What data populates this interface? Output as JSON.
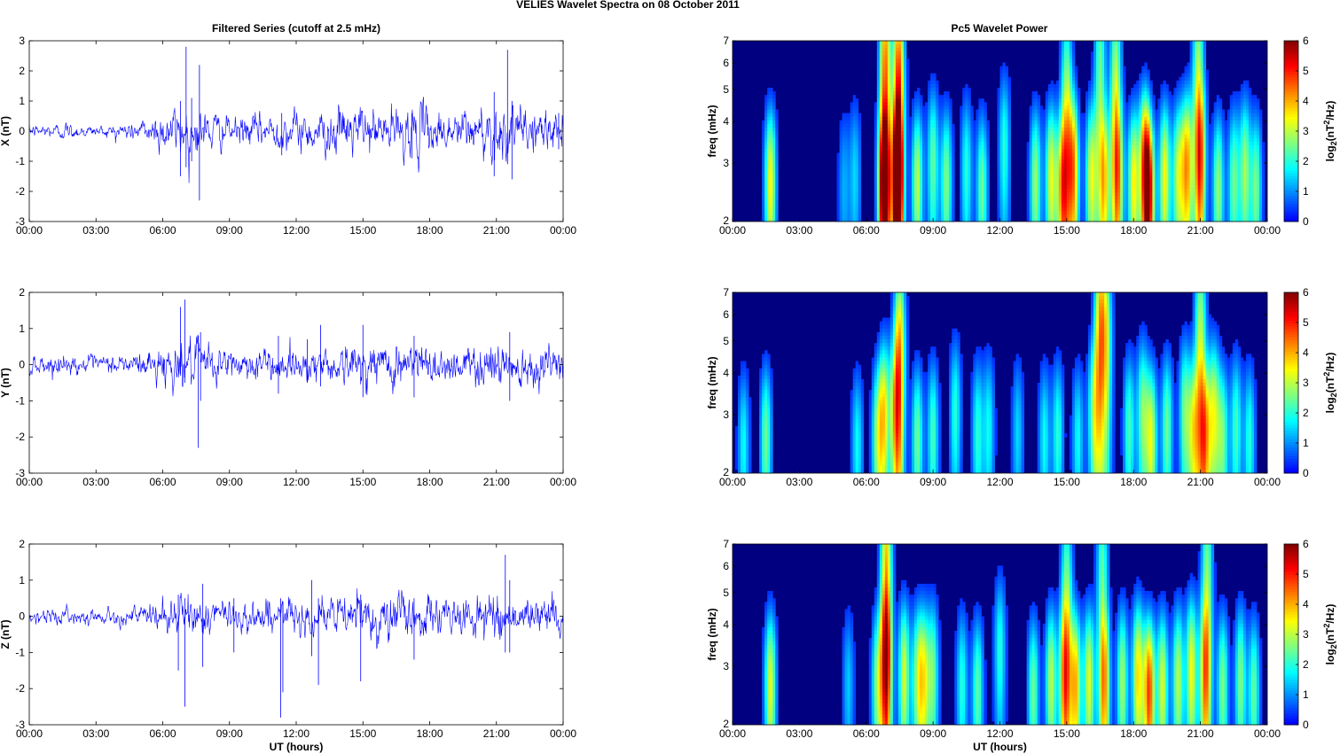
{
  "figure": {
    "suptitle": "VELIES Wavelet Spectra on 08 October   2011",
    "left_title": "Filtered Series (cutoff at 2.5 mHz)",
    "right_title": "Pc5 Wavelet Power",
    "xlabel": "UT (hours)",
    "freq_label": "freq (mHz)",
    "colorbar_label": "log2(nT^2/Hz)",
    "colorbar_ticks": [
      "0",
      "1",
      "2",
      "3",
      "4",
      "5",
      "6"
    ],
    "x_ticks": [
      "00:00",
      "03:00",
      "06:00",
      "09:00",
      "12:00",
      "15:00",
      "18:00",
      "21:00",
      "00:00"
    ],
    "freq_ticks": [
      "2",
      "3",
      "4",
      "5",
      "6",
      "7"
    ],
    "line_color": "#0000ff"
  },
  "chart_data": [
    {
      "type": "line",
      "name": "X component filtered series",
      "ylabel": "X (nT)",
      "xlim": [
        0,
        24
      ],
      "ylim": [
        -3,
        3
      ],
      "y_ticks": [
        "-3",
        "-2",
        "-1",
        "0",
        "1",
        "2",
        "3"
      ],
      "noise_profile": [
        [
          0,
          0.08
        ],
        [
          1.7,
          0.12
        ],
        [
          3,
          0.07
        ],
        [
          5,
          0.15
        ],
        [
          6,
          0.3
        ],
        [
          7,
          0.35
        ],
        [
          8,
          0.3
        ],
        [
          9,
          0.2
        ],
        [
          11,
          0.25
        ],
        [
          14.5,
          0.35
        ],
        [
          16,
          0.3
        ],
        [
          17.5,
          0.4
        ],
        [
          18,
          0.3
        ],
        [
          20,
          0.35
        ],
        [
          21,
          0.45
        ],
        [
          22,
          0.3
        ],
        [
          24,
          0.3
        ]
      ],
      "spikes": [
        [
          6.8,
          1.0,
          -1.5
        ],
        [
          7.05,
          2.8,
          -1.2
        ],
        [
          7.3,
          1.1,
          -1.0
        ],
        [
          7.65,
          2.2,
          -2.3
        ],
        [
          11.35,
          0.6,
          -0.8
        ],
        [
          17.2,
          0.6,
          -0.9
        ],
        [
          20.9,
          1.3,
          -1.5
        ],
        [
          21.5,
          2.7,
          -1.1
        ],
        [
          21.7,
          1.0,
          -1.6
        ],
        [
          23.8,
          0.6,
          -0.6
        ]
      ]
    },
    {
      "type": "line",
      "name": "Y component filtered series",
      "ylabel": "Y (nT)",
      "xlim": [
        0,
        24
      ],
      "ylim": [
        -3,
        2
      ],
      "y_ticks": [
        "-3",
        "-2",
        "-1",
        "0",
        "1",
        "2"
      ],
      "noise_profile": [
        [
          0,
          0.12
        ],
        [
          3,
          0.1
        ],
        [
          5,
          0.15
        ],
        [
          6,
          0.25
        ],
        [
          7,
          0.3
        ],
        [
          9,
          0.2
        ],
        [
          12,
          0.2
        ],
        [
          15,
          0.25
        ],
        [
          17.5,
          0.3
        ],
        [
          19,
          0.2
        ],
        [
          21,
          0.3
        ],
        [
          22,
          0.25
        ],
        [
          24,
          0.25
        ]
      ],
      "spikes": [
        [
          6.8,
          1.6,
          -0.3
        ],
        [
          7.0,
          1.8,
          -0.5
        ],
        [
          7.6,
          0.8,
          -2.3
        ],
        [
          7.7,
          0.9,
          -1.0
        ],
        [
          11.2,
          0.8,
          -0.8
        ],
        [
          12.5,
          0.7,
          -0.5
        ],
        [
          13.1,
          1.1,
          -0.6
        ],
        [
          15.0,
          1.1,
          -0.9
        ],
        [
          17.3,
          0.8,
          -0.9
        ],
        [
          21.6,
          0.9,
          -1.0
        ]
      ]
    },
    {
      "type": "line",
      "name": "Z component filtered series",
      "ylabel": "Z (nT)",
      "xlim": [
        0,
        24
      ],
      "ylim": [
        -3,
        2
      ],
      "y_ticks": [
        "-3",
        "-2",
        "-1",
        "0",
        "1",
        "2"
      ],
      "noise_profile": [
        [
          0,
          0.1
        ],
        [
          3,
          0.08
        ],
        [
          5,
          0.12
        ],
        [
          6,
          0.2
        ],
        [
          7,
          0.25
        ],
        [
          9,
          0.2
        ],
        [
          12,
          0.2
        ],
        [
          14,
          0.25
        ],
        [
          15,
          0.3
        ],
        [
          17,
          0.3
        ],
        [
          19,
          0.2
        ],
        [
          21,
          0.3
        ],
        [
          22,
          0.2
        ],
        [
          24,
          0.25
        ]
      ],
      "spikes": [
        [
          6.7,
          0.6,
          -1.5
        ],
        [
          7.0,
          0.5,
          -2.5
        ],
        [
          7.8,
          0.9,
          -1.4
        ],
        [
          9.2,
          0.5,
          -1.0
        ],
        [
          11.3,
          0.5,
          -2.8
        ],
        [
          11.4,
          0.4,
          -2.1
        ],
        [
          12.7,
          1.0,
          -1.1
        ],
        [
          13.0,
          0.5,
          -1.9
        ],
        [
          14.9,
          0.6,
          -1.8
        ],
        [
          17.3,
          0.5,
          -1.2
        ],
        [
          21.4,
          1.7,
          -1.0
        ],
        [
          21.6,
          1.0,
          -1.0
        ]
      ]
    },
    {
      "type": "heatmap",
      "name": "X wavelet power",
      "xlim": [
        0,
        24
      ],
      "ylim_mhz": [
        2,
        7
      ],
      "zlim": [
        0,
        6
      ],
      "colormap": "jet",
      "blobs": [
        [
          1.7,
          2.6,
          3.5
        ],
        [
          5.0,
          2.5,
          1.2
        ],
        [
          5.5,
          2.7,
          1.5
        ],
        [
          6.8,
          2.5,
          5.5
        ],
        [
          6.85,
          5.5,
          4.5
        ],
        [
          7.4,
          2.6,
          5.8
        ],
        [
          7.45,
          5.0,
          5.0
        ],
        [
          8.3,
          2.6,
          3.0
        ],
        [
          9.0,
          3.0,
          2.4
        ],
        [
          9.6,
          2.6,
          2.6
        ],
        [
          10.5,
          2.8,
          2.0
        ],
        [
          11.2,
          2.5,
          2.5
        ],
        [
          12.2,
          3.3,
          2.0
        ],
        [
          13.6,
          2.6,
          2.8
        ],
        [
          14.3,
          2.7,
          3.3
        ],
        [
          14.8,
          2.5,
          3.8
        ],
        [
          15.3,
          2.8,
          4.0
        ],
        [
          15.0,
          4.5,
          2.8
        ],
        [
          16.1,
          2.7,
          3.2
        ],
        [
          16.7,
          2.6,
          3.0
        ],
        [
          16.5,
          5.5,
          2.5
        ],
        [
          17.3,
          2.7,
          3.0
        ],
        [
          17.2,
          5.0,
          3.0
        ],
        [
          18.0,
          2.6,
          3.5
        ],
        [
          18.5,
          3.0,
          4.0
        ],
        [
          18.7,
          2.4,
          4.6
        ],
        [
          19.4,
          2.7,
          3.5
        ],
        [
          20.0,
          2.7,
          3.0
        ],
        [
          20.4,
          2.9,
          4.0
        ],
        [
          21.0,
          3.0,
          3.5
        ],
        [
          20.9,
          5.5,
          2.8
        ],
        [
          21.8,
          2.5,
          2.8
        ],
        [
          22.5,
          2.6,
          2.5
        ],
        [
          23.0,
          2.8,
          2.8
        ],
        [
          23.5,
          2.5,
          2.5
        ]
      ]
    },
    {
      "type": "heatmap",
      "name": "Y wavelet power",
      "xlim": [
        0,
        24
      ],
      "ylim_mhz": [
        2,
        7
      ],
      "zlim": [
        0,
        6
      ],
      "colormap": "jet",
      "blobs": [
        [
          0.5,
          2.4,
          1.8
        ],
        [
          1.5,
          2.5,
          2.5
        ],
        [
          5.6,
          2.4,
          1.8
        ],
        [
          6.5,
          2.5,
          2.5
        ],
        [
          6.8,
          3.0,
          3.2
        ],
        [
          7.3,
          3.0,
          3.0
        ],
        [
          7.5,
          4.5,
          3.8
        ],
        [
          8.3,
          2.5,
          2.5
        ],
        [
          9.0,
          2.6,
          2.2
        ],
        [
          10.0,
          3.0,
          2.0
        ],
        [
          11.0,
          2.6,
          2.0
        ],
        [
          11.5,
          2.7,
          1.8
        ],
        [
          12.8,
          2.6,
          1.5
        ],
        [
          14.0,
          2.5,
          1.8
        ],
        [
          14.6,
          2.6,
          2.0
        ],
        [
          15.5,
          2.5,
          1.8
        ],
        [
          16.2,
          3.0,
          2.5
        ],
        [
          16.5,
          5.3,
          3.8
        ],
        [
          16.8,
          4.8,
          2.5
        ],
        [
          17.8,
          2.7,
          2.2
        ],
        [
          18.4,
          3.0,
          2.5
        ],
        [
          18.8,
          2.5,
          3.2
        ],
        [
          19.5,
          2.7,
          2.5
        ],
        [
          20.3,
          3.0,
          2.5
        ],
        [
          20.7,
          2.6,
          3.0
        ],
        [
          21.2,
          2.5,
          3.5
        ],
        [
          21.0,
          5.0,
          3.0
        ],
        [
          21.6,
          3.0,
          3.0
        ],
        [
          22.0,
          2.5,
          2.5
        ],
        [
          22.6,
          2.7,
          2.2
        ],
        [
          23.2,
          2.5,
          2.0
        ]
      ]
    },
    {
      "type": "heatmap",
      "name": "Z wavelet power",
      "xlim": [
        0,
        24
      ],
      "ylim_mhz": [
        2,
        7
      ],
      "zlim": [
        0,
        6
      ],
      "colormap": "jet",
      "blobs": [
        [
          1.7,
          2.6,
          3.3
        ],
        [
          5.2,
          2.6,
          1.4
        ],
        [
          6.5,
          2.6,
          2.6
        ],
        [
          6.9,
          3.0,
          3.5
        ],
        [
          6.9,
          6.0,
          3.8
        ],
        [
          7.7,
          2.8,
          3.2
        ],
        [
          8.3,
          2.7,
          2.6
        ],
        [
          8.6,
          2.7,
          2.8
        ],
        [
          9.0,
          2.8,
          2.4
        ],
        [
          10.3,
          2.6,
          2.0
        ],
        [
          11.0,
          2.5,
          2.4
        ],
        [
          12.0,
          3.3,
          2.0
        ],
        [
          13.5,
          2.5,
          2.5
        ],
        [
          14.3,
          2.7,
          3.0
        ],
        [
          14.9,
          2.7,
          3.3
        ],
        [
          15.4,
          2.6,
          3.8
        ],
        [
          15.0,
          4.8,
          2.6
        ],
        [
          16.0,
          2.7,
          3.2
        ],
        [
          16.7,
          2.6,
          3.0
        ],
        [
          16.6,
          5.5,
          2.4
        ],
        [
          17.5,
          2.7,
          2.8
        ],
        [
          18.2,
          2.8,
          3.6
        ],
        [
          18.7,
          2.5,
          4.8
        ],
        [
          19.3,
          2.6,
          3.2
        ],
        [
          20.0,
          2.7,
          3.0
        ],
        [
          20.6,
          2.9,
          3.4
        ],
        [
          21.2,
          2.8,
          3.2
        ],
        [
          21.3,
          5.5,
          2.6
        ],
        [
          22.0,
          2.6,
          2.6
        ],
        [
          22.8,
          2.7,
          2.6
        ],
        [
          23.4,
          2.5,
          2.4
        ]
      ]
    }
  ]
}
